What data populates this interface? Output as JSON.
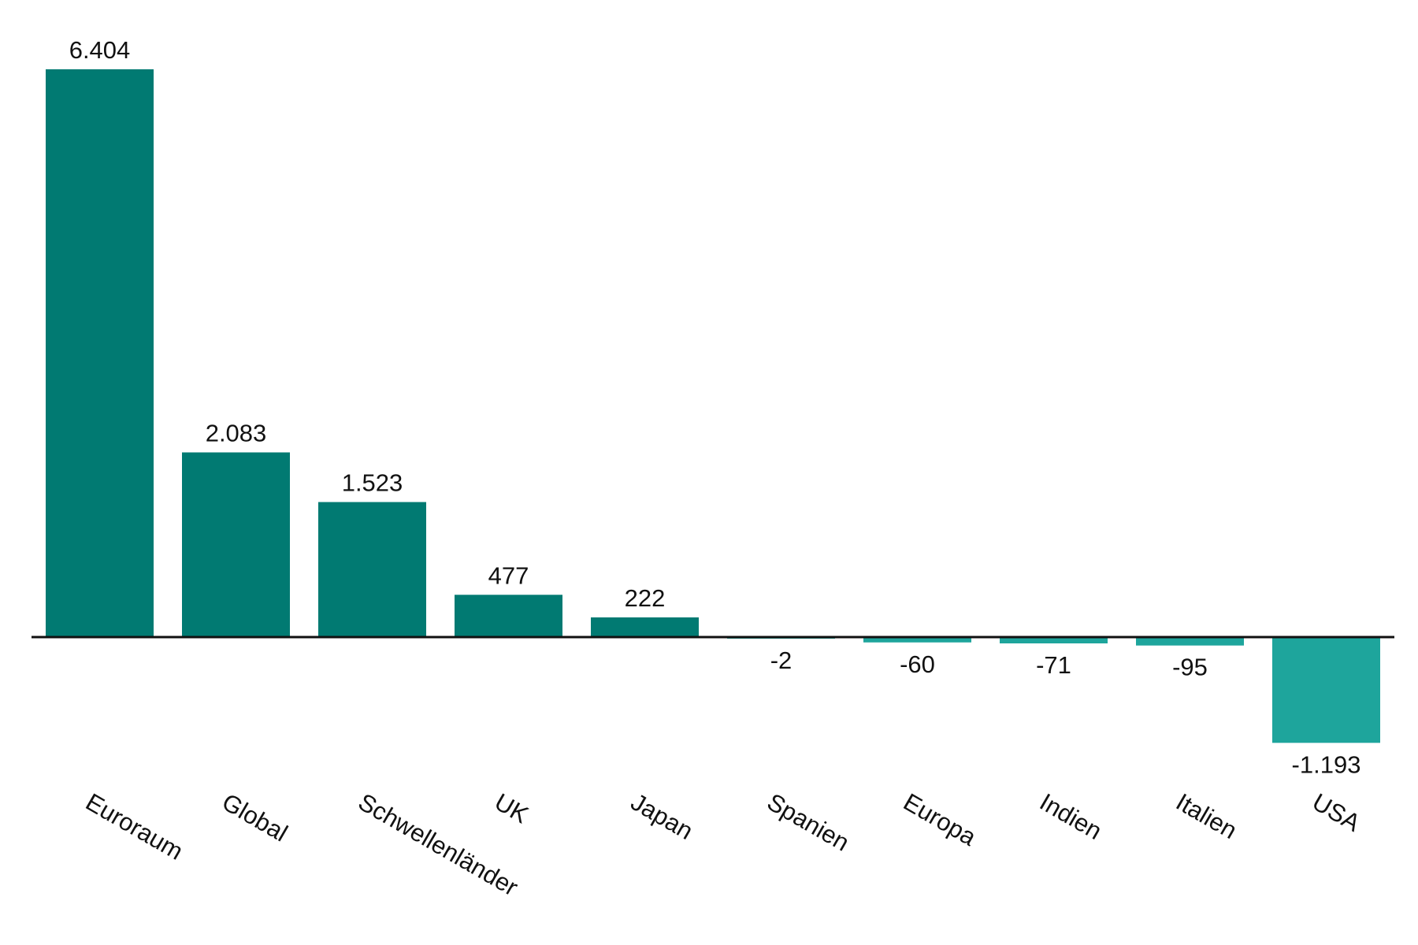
{
  "chart_data": {
    "type": "bar",
    "categories": [
      "Euroraum",
      "Global",
      "Schwellenländer",
      "UK",
      "Japan",
      "Spanien",
      "Europa",
      "Indien",
      "Italien",
      "USA"
    ],
    "values": [
      6404,
      2083,
      1523,
      477,
      222,
      -2,
      -60,
      -71,
      -95,
      -1193
    ],
    "value_labels": [
      "6.404",
      "2.083",
      "1.523",
      "477",
      "222",
      "-2",
      "-60",
      "-71",
      "-95",
      "-1.193"
    ],
    "title": "",
    "xlabel": "",
    "ylabel": "",
    "ylim": [
      -1193,
      6404
    ],
    "grid": false,
    "legend": "none",
    "colors": {
      "positive": "#017a72",
      "negative": "#1ea59c",
      "axis": "#111111"
    }
  }
}
